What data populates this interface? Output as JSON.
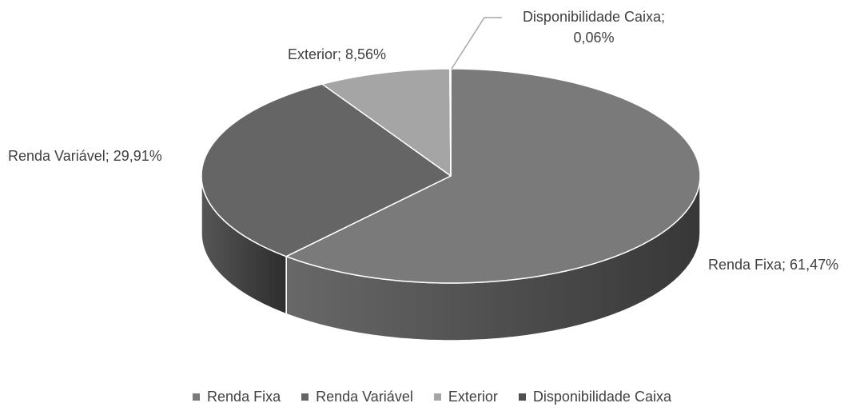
{
  "chart_data": {
    "type": "pie",
    "categories": [
      "Renda Fixa",
      "Renda Variável",
      "Exterior",
      "Disponibilidade Caixa"
    ],
    "values": [
      61.47,
      29.91,
      8.56,
      0.06
    ],
    "value_labels": [
      "Renda Fixa; 61,47%",
      "Renda Variável; 29,91%",
      "Exterior; 8,56%",
      "Disponibilidade Caixa; 0,06%"
    ],
    "colors": [
      "#7a7a7a",
      "#656565",
      "#a5a5a5",
      "#4f4f4f"
    ],
    "legend": "bottom"
  }
}
